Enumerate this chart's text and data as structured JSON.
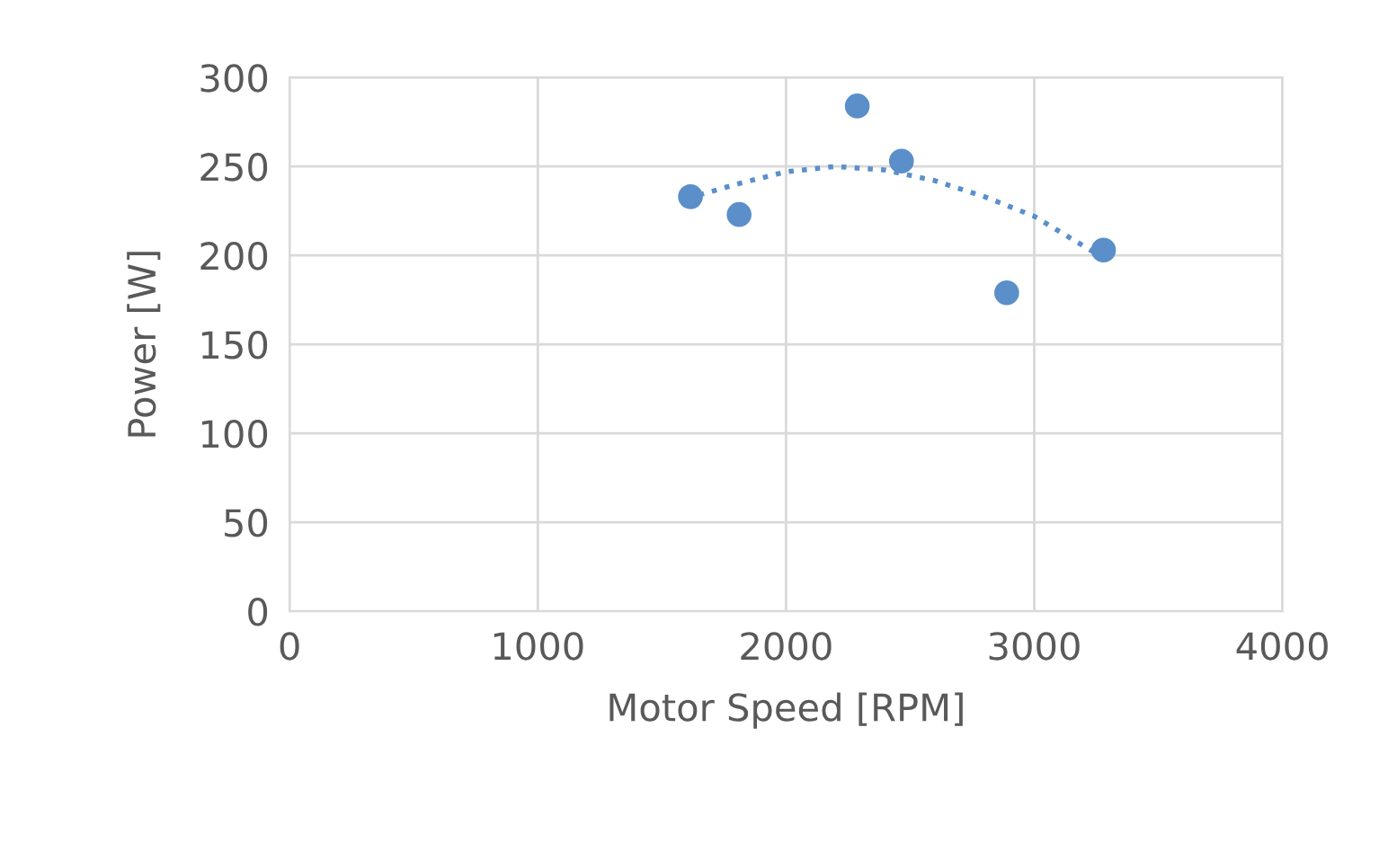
{
  "chart_data": {
    "type": "scatter",
    "xlabel": "Motor Speed [RPM]",
    "ylabel": "Power [W]",
    "xlim": [
      0,
      4000
    ],
    "xticks": [
      0,
      1000,
      2000,
      3000,
      4000
    ],
    "ylim": [
      0,
      300
    ],
    "yticks": [
      0,
      50,
      100,
      150,
      200,
      250,
      300
    ],
    "grid": true,
    "marker": "circle",
    "series": [
      {
        "color": "#5b8fc9",
        "x": [
          1615,
          1811,
          2287,
          2465,
          2889,
          3279
        ],
        "values": [
          233,
          223,
          284,
          253,
          179,
          203
        ]
      },
      {
        "type": "line",
        "color": "#5b8fc9",
        "line_style": "dotted",
        "marker": "none",
        "x": [
          1650,
          1800,
          2000,
          2200,
          2400,
          2600,
          2800,
          3000,
          3250
        ],
        "values": [
          234,
          240,
          247,
          250,
          248,
          242,
          233,
          222,
          201
        ]
      }
    ]
  }
}
